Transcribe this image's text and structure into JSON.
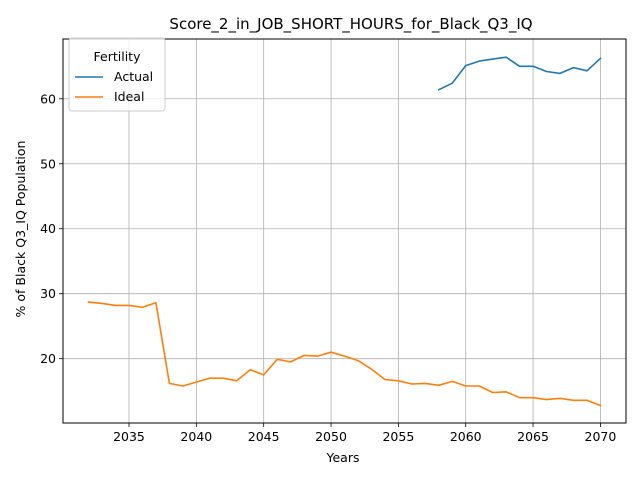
{
  "chart_data": {
    "type": "line",
    "title": "Score_2_in_JOB_SHORT_HOURS_for_Black_Q3_IQ",
    "xlabel": "Years",
    "ylabel": "% of Black Q3_IQ Population",
    "xlim": [
      2030.1,
      2071.9
    ],
    "ylim": [
      10.1,
      69.2
    ],
    "xticks": [
      2035,
      2040,
      2045,
      2050,
      2055,
      2060,
      2065,
      2070
    ],
    "yticks": [
      20,
      30,
      40,
      50,
      60
    ],
    "grid": true,
    "legend": {
      "title": "Fertility",
      "placement": "top-left"
    },
    "series": [
      {
        "name": "Actual",
        "color": "#1f77b4",
        "x": [
          2058,
          2059,
          2060,
          2061,
          2062,
          2063,
          2064,
          2065,
          2066,
          2067,
          2068,
          2069,
          2070
        ],
        "y": [
          61.4,
          62.4,
          65.1,
          65.8,
          66.1,
          66.4,
          65.0,
          65.0,
          64.2,
          63.9,
          64.8,
          64.3,
          66.2
        ]
      },
      {
        "name": "Ideal",
        "color": "#ff7f0e",
        "x": [
          2032,
          2033,
          2034,
          2035,
          2036,
          2037,
          2038,
          2039,
          2040,
          2041,
          2042,
          2043,
          2044,
          2045,
          2046,
          2047,
          2048,
          2049,
          2050,
          2051,
          2052,
          2053,
          2054,
          2055,
          2056,
          2057,
          2058,
          2059,
          2060,
          2061,
          2062,
          2063,
          2064,
          2065,
          2066,
          2067,
          2068,
          2069,
          2070
        ],
        "y": [
          28.7,
          28.5,
          28.2,
          28.2,
          27.9,
          28.6,
          16.2,
          15.8,
          16.4,
          17.0,
          17.0,
          16.6,
          18.3,
          17.5,
          19.9,
          19.5,
          20.5,
          20.4,
          21.0,
          20.4,
          19.7,
          18.4,
          16.8,
          16.6,
          16.1,
          16.2,
          15.9,
          16.5,
          15.8,
          15.8,
          14.8,
          14.9,
          14.0,
          14.0,
          13.7,
          13.9,
          13.6,
          13.6,
          12.8
        ]
      }
    ]
  }
}
